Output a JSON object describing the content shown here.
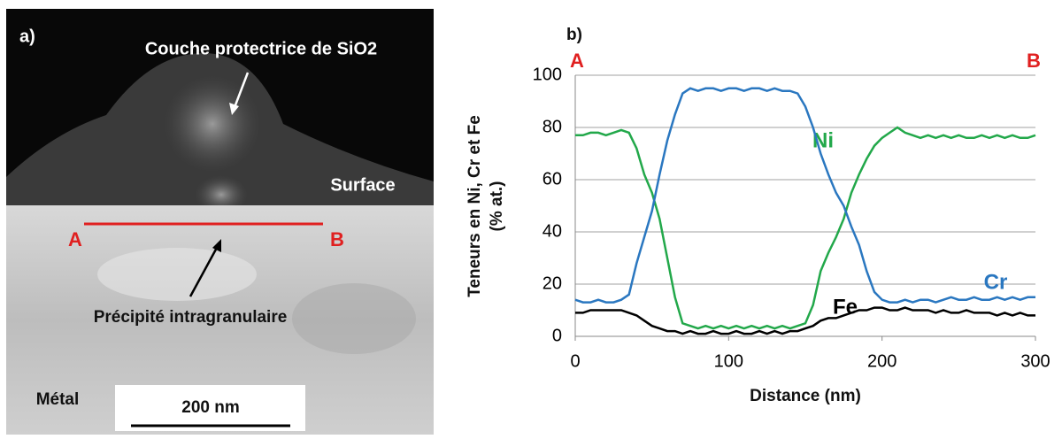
{
  "panel_a": {
    "label": "a)",
    "layer": "Couche protectrice de SiO2",
    "surface": "Surface",
    "point_a": "A",
    "point_b": "B",
    "precipitate": "Précipité intragranulaire",
    "metal": "Métal",
    "scale_bar": "200 nm"
  },
  "chart_data": {
    "type": "line",
    "panel_label": "b)",
    "start_label": "A",
    "end_label": "B",
    "xlabel": "Distance (nm)",
    "ylabel": [
      "Teneurs en Ni, Cr et Fe",
      "(% at.)"
    ],
    "x": [
      0,
      5,
      10,
      15,
      20,
      25,
      30,
      35,
      40,
      45,
      50,
      55,
      60,
      65,
      70,
      75,
      80,
      85,
      90,
      95,
      100,
      105,
      110,
      115,
      120,
      125,
      130,
      135,
      140,
      145,
      150,
      155,
      160,
      165,
      170,
      175,
      180,
      185,
      190,
      195,
      200,
      205,
      210,
      215,
      220,
      225,
      230,
      235,
      240,
      245,
      250,
      255,
      260,
      265,
      270,
      275,
      280,
      285,
      290,
      295,
      300
    ],
    "series": [
      {
        "name": "Ni",
        "color": "#22a84a",
        "values": [
          77,
          77,
          78,
          78,
          77,
          78,
          79,
          78,
          72,
          62,
          55,
          45,
          30,
          15,
          5,
          4,
          3,
          4,
          3,
          4,
          3,
          4,
          3,
          4,
          3,
          4,
          3,
          4,
          3,
          4,
          5,
          12,
          25,
          32,
          38,
          45,
          55,
          62,
          68,
          73,
          76,
          78,
          80,
          78,
          77,
          76,
          77,
          76,
          77,
          76,
          77,
          76,
          76,
          77,
          76,
          77,
          76,
          77,
          76,
          76,
          77
        ]
      },
      {
        "name": "Cr",
        "color": "#2a77c0",
        "values": [
          14,
          13,
          13,
          14,
          13,
          13,
          14,
          16,
          28,
          38,
          48,
          62,
          75,
          85,
          93,
          95,
          94,
          95,
          95,
          94,
          95,
          95,
          94,
          95,
          95,
          94,
          95,
          94,
          94,
          93,
          88,
          80,
          70,
          62,
          55,
          50,
          42,
          35,
          25,
          17,
          14,
          13,
          13,
          14,
          13,
          14,
          14,
          13,
          14,
          15,
          14,
          14,
          15,
          14,
          14,
          15,
          14,
          15,
          14,
          15,
          15
        ]
      },
      {
        "name": "Fe",
        "color": "#000000",
        "values": [
          9,
          9,
          10,
          10,
          10,
          10,
          10,
          9,
          8,
          6,
          4,
          3,
          2,
          2,
          1,
          2,
          1,
          1,
          2,
          1,
          1,
          2,
          1,
          1,
          2,
          1,
          2,
          1,
          2,
          2,
          3,
          4,
          6,
          7,
          7,
          8,
          9,
          10,
          10,
          11,
          11,
          10,
          10,
          11,
          10,
          10,
          10,
          9,
          10,
          9,
          9,
          10,
          9,
          9,
          9,
          8,
          9,
          8,
          9,
          8,
          8
        ]
      }
    ],
    "xlim": [
      0,
      300
    ],
    "xticks": [
      0,
      100,
      200,
      300
    ],
    "ylim": [
      0,
      100
    ],
    "yticks": [
      0,
      20,
      40,
      60,
      80,
      100
    ],
    "grid": true
  }
}
